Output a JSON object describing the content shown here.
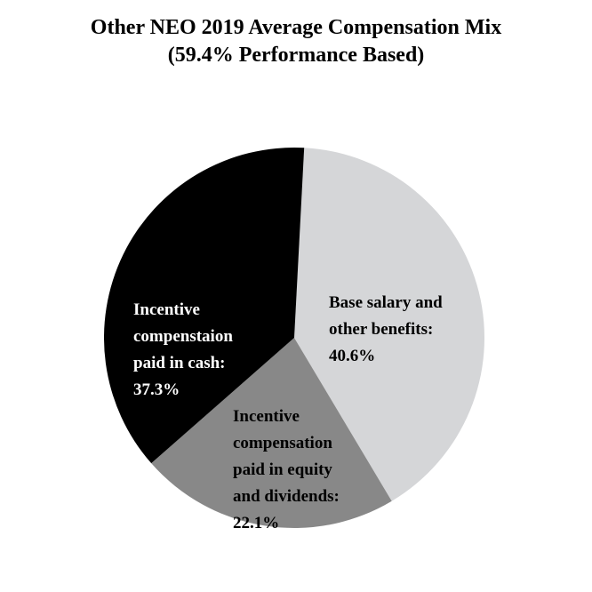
{
  "chart_data": {
    "type": "pie",
    "title": "Other NEO 2019 Average Compensation Mix",
    "subtitle": "(59.4% Performance Based)",
    "start_angle_deg": 3,
    "direction": "clockwise",
    "slices": [
      {
        "label_lines": [
          "Base salary and",
          "other benefits:",
          "40.6%"
        ],
        "value": 40.6,
        "color": "#d5d6d8",
        "text_color": "#000000"
      },
      {
        "label_lines": [
          "Incentive",
          "compensation",
          "paid in equity",
          "and dividends:",
          "22.1%"
        ],
        "value": 22.1,
        "color": "#888888",
        "text_color": "#000000"
      },
      {
        "label_lines": [
          "Incentive",
          "compenstaion",
          "paid in cash:",
          "37.3%"
        ],
        "value": 37.3,
        "color": "#000000",
        "text_color": "#ffffff"
      }
    ]
  }
}
